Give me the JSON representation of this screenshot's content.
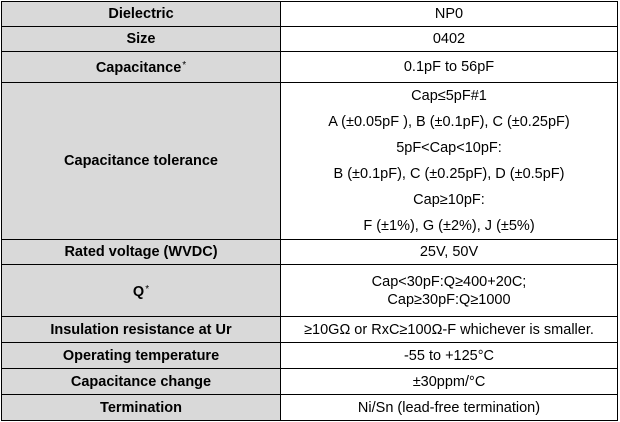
{
  "rows": {
    "dielectric": {
      "label": "Dielectric",
      "value": "NP0"
    },
    "size": {
      "label": "Size",
      "value": "0402"
    },
    "capacitance": {
      "label": "Capacitance",
      "mark": "*",
      "value": "0.1pF to 56pF"
    },
    "tolerance": {
      "label": "Capacitance tolerance",
      "lines": [
        "Cap≤5pF#1",
        "A (±0.05pF ), B (±0.1pF), C (±0.25pF)",
        "5pF<Cap<10pF:",
        "B (±0.1pF), C (±0.25pF), D (±0.5pF)",
        "Cap≥10pF:",
        "F (±1%), G (±2%), J (±5%)"
      ]
    },
    "rated_voltage": {
      "label": "Rated voltage (WVDC)",
      "value": "25V, 50V"
    },
    "q": {
      "label": "Q",
      "mark": "*",
      "lines": [
        "Cap<30pF:Q≥400+20C;",
        "Cap≥30pF:Q≥1000"
      ]
    },
    "insulation": {
      "label": "Insulation resistance at Ur",
      "value": "≥10GΩ or RxC≥100Ω-F whichever is smaller."
    },
    "operating_temp": {
      "label": "Operating temperature",
      "value": "-55 to +125°C"
    },
    "cap_change": {
      "label": "Capacitance change",
      "value": "±30ppm/°C"
    },
    "termination": {
      "label": "Termination",
      "value": "Ni/Sn (lead-free termination)"
    }
  },
  "colors": {
    "label_bg": "#d9d9d9",
    "border": "#000000"
  }
}
